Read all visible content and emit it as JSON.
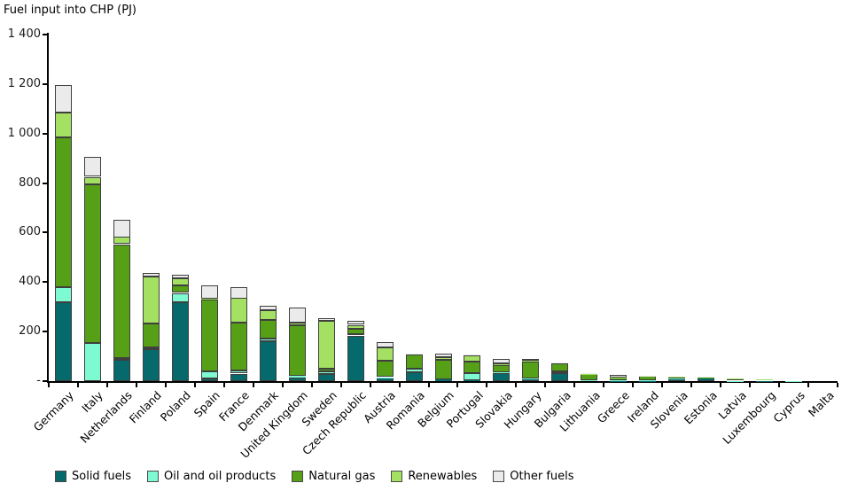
{
  "title": "Fuel input into CHP (PJ)",
  "chart_data": {
    "type": "bar",
    "stacked": true,
    "title": "Fuel input into CHP (PJ)",
    "xlabel": "",
    "ylabel": "Fuel input into CHP (PJ)",
    "ylim": [
      0,
      1400
    ],
    "grid": false,
    "legend_position": "bottom",
    "yticks": [
      {
        "value": 0,
        "label": "-"
      },
      {
        "value": 200,
        "label": "200"
      },
      {
        "value": 400,
        "label": "400"
      },
      {
        "value": 600,
        "label": "600"
      },
      {
        "value": 800,
        "label": "800"
      },
      {
        "value": 1000,
        "label": "1 000"
      },
      {
        "value": 1200,
        "label": "1 200"
      },
      {
        "value": 1400,
        "label": "1 400"
      }
    ],
    "categories": [
      "Germany",
      "Italy",
      "Netherlands",
      "Finland",
      "Poland",
      "Spain",
      "France",
      "Denmark",
      "United Kingdom",
      "Sweden",
      "Czech Republic",
      "Austria",
      "Romania",
      "Belgium",
      "Portugal",
      "Slovakia",
      "Hungary",
      "Bulgaria",
      "Lithuania",
      "Greece",
      "Ireland",
      "Slovenia",
      "Estonia",
      "Latvia",
      "Luxembourg",
      "Cyprus",
      "Malta"
    ],
    "series": [
      {
        "name": "Solid fuels",
        "color": "#06696b",
        "values": [
          320,
          2,
          85,
          128,
          320,
          10,
          30,
          160,
          14,
          30,
          184,
          14,
          35,
          7,
          2,
          33,
          10,
          33,
          2,
          1,
          1,
          9,
          13,
          0,
          1,
          0,
          0
        ]
      },
      {
        "name": "Oil and oil products",
        "color": "#7efad2",
        "values": [
          60,
          153,
          8,
          8,
          36,
          29,
          12,
          11,
          7,
          10,
          8,
          2,
          15,
          2,
          29,
          3,
          2,
          8,
          1,
          2,
          1,
          1,
          1,
          1,
          0,
          1,
          0
        ]
      },
      {
        "name": "Natural gas",
        "color": "#55a017",
        "values": [
          605,
          640,
          460,
          98,
          29,
          290,
          194,
          75,
          204,
          11,
          21,
          66,
          58,
          78,
          47,
          27,
          68,
          32,
          24,
          12,
          19,
          8,
          2,
          8,
          5,
          0,
          0
        ]
      },
      {
        "name": "Renewables",
        "color": "#a4e163",
        "values": [
          100,
          30,
          30,
          188,
          29,
          4,
          100,
          40,
          11,
          193,
          14,
          54,
          2,
          10,
          25,
          10,
          2,
          1,
          3,
          1,
          1,
          1,
          1,
          3,
          1,
          0,
          0
        ]
      },
      {
        "name": "Other fuels",
        "color": "#ebebeb",
        "values": [
          110,
          80,
          70,
          14,
          14,
          53,
          45,
          18,
          61,
          12,
          16,
          21,
          1,
          14,
          5,
          17,
          8,
          1,
          1,
          9,
          1,
          0,
          2,
          0,
          0,
          0,
          0
        ]
      }
    ]
  }
}
